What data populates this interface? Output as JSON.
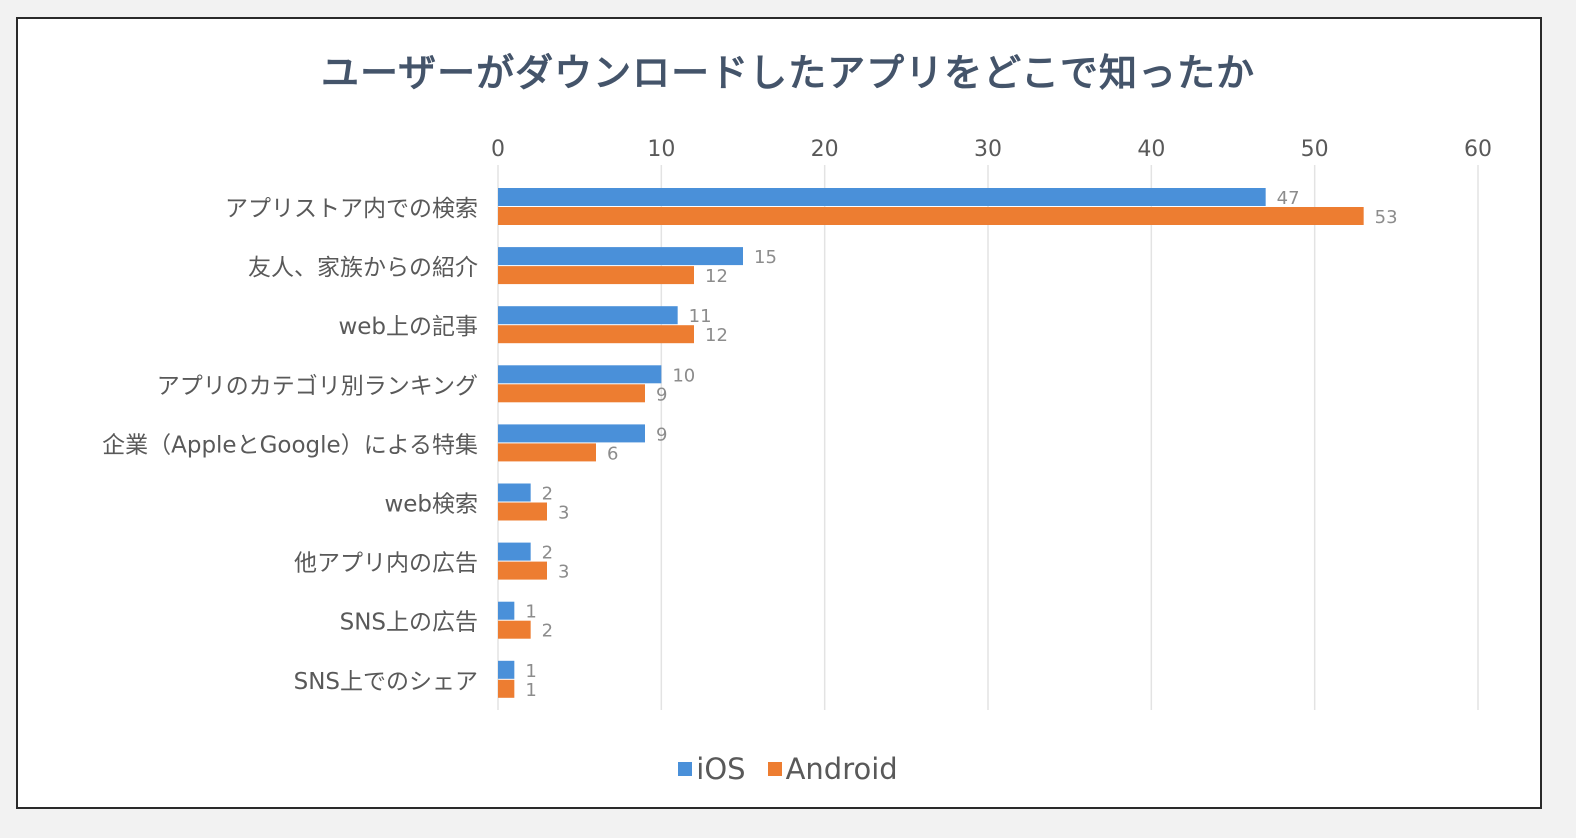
{
  "chart_data": {
    "type": "bar",
    "orientation": "horizontal",
    "title": "ユーザーがダウンロードしたアプリをどこで知ったか",
    "categories": [
      "アプリストア内での検索",
      "友人、家族からの紹介",
      "web上の記事",
      "アプリのカテゴリ別ランキング",
      "企業（AppleとGoogle）による特集",
      "web検索",
      "他アプリ内の広告",
      "SNS上の広告",
      "SNS上でのシェア"
    ],
    "series": [
      {
        "name": "iOS",
        "color": "#4a90d9",
        "values": [
          47,
          15,
          11,
          10,
          9,
          2,
          2,
          1,
          1
        ]
      },
      {
        "name": "Android",
        "color": "#ed7d31",
        "values": [
          53,
          12,
          12,
          9,
          6,
          3,
          3,
          2,
          1
        ]
      }
    ],
    "xlim": [
      0,
      60
    ],
    "xticks": [
      0,
      10,
      20,
      30,
      40,
      50,
      60
    ],
    "xlabel": "",
    "ylabel": "",
    "grid": true,
    "legend_position": "bottom"
  }
}
